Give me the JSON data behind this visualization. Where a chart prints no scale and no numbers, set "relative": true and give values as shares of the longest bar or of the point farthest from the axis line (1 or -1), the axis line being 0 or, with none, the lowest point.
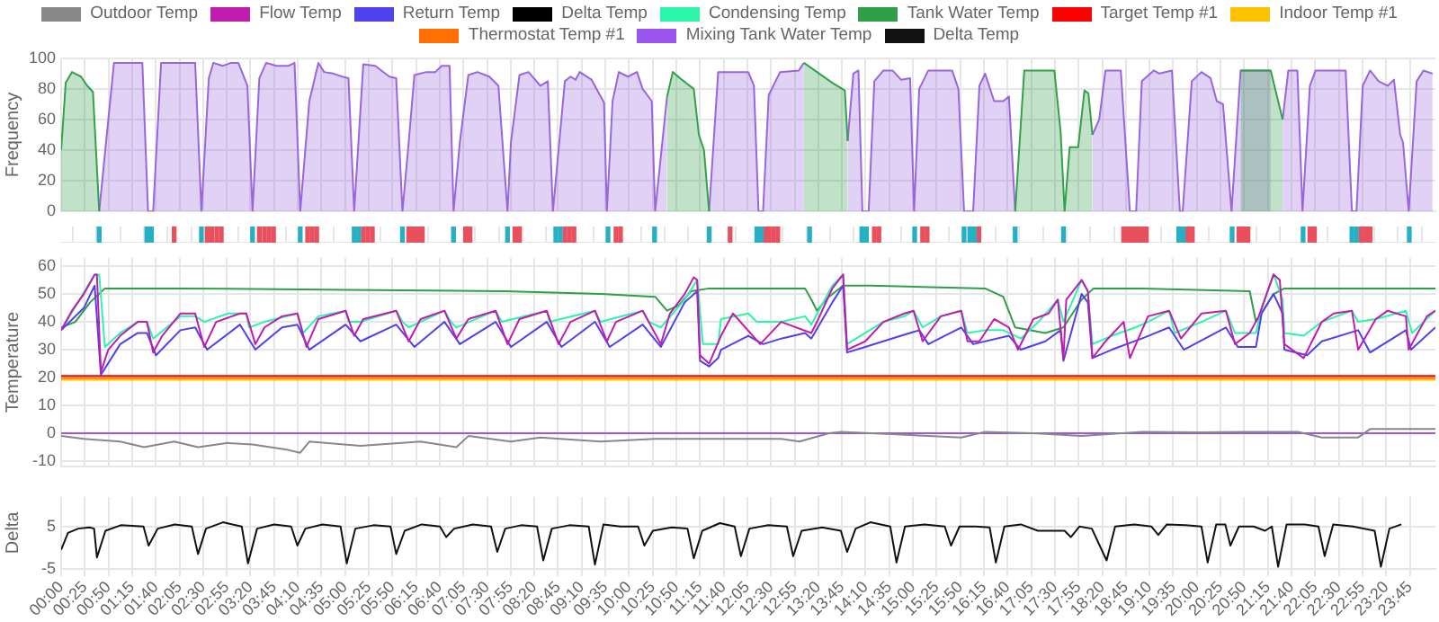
{
  "chart_data": [
    {
      "type": "area",
      "ylabel": "Frequency",
      "xlim": [
        0,
        24.2
      ],
      "ylim": [
        0,
        100
      ],
      "yticks": [
        0,
        20,
        40,
        60,
        80,
        100
      ],
      "tick_labels": "y",
      "grid": true,
      "legend": false,
      "marker": "none",
      "series": [
        {
          "color": "#33a04a",
          "x": [
            0,
            0.08,
            0.19,
            0.35,
            0.46,
            0.56,
            0.67,
            5,
            10.67,
            10.77,
            10.93,
            11.14,
            11.23,
            11.32,
            11.41,
            12,
            13.08,
            13.31,
            13.58,
            13.8,
            13.85,
            15,
            16.8,
            16.96,
            17.49,
            17.6,
            17.67,
            17.76,
            17.91,
            18.02,
            18.09,
            18.16,
            19,
            20.77,
            21.3,
            21.51
          ],
          "values": [
            40,
            84,
            91,
            88,
            82,
            78,
            0,
            null,
            75,
            91,
            86,
            80,
            50,
            40,
            0,
            null,
            97,
            91,
            84,
            79,
            46,
            null,
            0,
            92,
            92,
            52,
            0,
            42,
            42,
            79,
            77,
            50,
            null,
            92,
            92,
            60
          ]
        },
        {
          "color": "#9966dd",
          "x": [
            0.67,
            0.93,
            1.43,
            1.53,
            1.62,
            1.76,
            2.36,
            2.47,
            2.6,
            2.68,
            2.84,
            2.99,
            3.12,
            3.28,
            3.37,
            3.49,
            3.61,
            3.79,
            4.0,
            4.11,
            4.21,
            4.37,
            4.53,
            4.63,
            4.79,
            4.95,
            5.06,
            5.16,
            5.32,
            5.53,
            5.78,
            5.9,
            6.01,
            6.12,
            6.22,
            6.43,
            6.59,
            6.7,
            6.84,
            6.91,
            7.02,
            7.17,
            7.33,
            7.54,
            7.7,
            7.86,
            7.92,
            8.07,
            8.23,
            8.44,
            8.57,
            8.66,
            8.87,
            8.97,
            9.06,
            9.13,
            9.34,
            9.56,
            9.61,
            9.71,
            9.82,
            9.98,
            10.14,
            10.24,
            10.4,
            10.46,
            10.67,
            11.0,
            11.41,
            11.57,
            11.62,
            12.1,
            12.2,
            12.28,
            12.36,
            12.46,
            12.66,
            12.99,
            13.08,
            13.5,
            13.85,
            13.95,
            14.04,
            14.11,
            14.22,
            14.32,
            14.48,
            14.64,
            14.79,
            14.95,
            15.02,
            15.11,
            15.27,
            15.69,
            15.8,
            15.9,
            16.06,
            16.17,
            16.27,
            16.43,
            16.59,
            16.69,
            16.8,
            17.3,
            18.16,
            18.28,
            18.39,
            18.66,
            18.82,
            18.93,
            19.03,
            19.24,
            19.34,
            19.56,
            19.7,
            19.75,
            19.91,
            20.08,
            20.24,
            20.35,
            20.46,
            20.61,
            20.77,
            21.3,
            21.4,
            21.51,
            21.61,
            21.77,
            21.86,
            21.99,
            22.09,
            22.62,
            22.73,
            22.81,
            22.92,
            23.05,
            23.2,
            23.36,
            23.47,
            23.58,
            23.63,
            23.73,
            23.87,
            23.99,
            24.15
          ],
          "values": [
            0,
            97,
            97,
            0,
            0,
            97,
            97,
            0,
            87,
            97,
            95,
            97,
            97,
            82,
            0,
            87,
            97,
            95,
            95,
            97,
            0,
            72,
            97,
            91,
            90,
            88,
            87,
            0,
            96,
            95,
            88,
            87,
            0,
            45,
            89,
            91,
            91,
            95,
            95,
            0,
            45,
            89,
            91,
            88,
            82,
            0,
            45,
            89,
            91,
            82,
            85,
            0,
            85,
            88,
            86,
            91,
            86,
            71,
            0,
            72,
            91,
            88,
            91,
            80,
            72,
            0,
            75,
            null,
            0,
            91,
            91,
            91,
            82,
            0,
            0,
            76,
            91,
            92,
            97,
            null,
            46,
            90,
            92,
            0,
            0,
            85,
            92,
            92,
            86,
            87,
            0,
            80,
            92,
            92,
            80,
            0,
            0,
            82,
            90,
            72,
            72,
            75,
            0,
            null,
            50,
            60,
            92,
            92,
            0,
            0,
            85,
            92,
            90,
            92,
            0,
            0,
            85,
            91,
            87,
            72,
            70,
            0,
            92,
            92,
            null,
            60,
            92,
            92,
            0,
            82,
            92,
            92,
            0,
            0,
            82,
            92,
            85,
            82,
            86,
            50,
            45,
            0,
            85,
            92,
            90
          ]
        }
      ]
    },
    {
      "type": "bar",
      "relative": true,
      "xlim": [
        0,
        24.2
      ],
      "tick_labels": false,
      "grid": "x",
      "legend": false,
      "series": [
        {
          "color": "#26b0c4",
          "x": [
            0.67,
            1.51,
            1.59,
            2.47,
            3.37,
            4.21,
            5.16,
            5.24,
            6.01,
            6.91,
            7.86,
            8.71,
            8.79,
            9.63,
            10.45,
            11.41,
            12.25,
            12.33,
            13.18,
            14.1,
            14.18,
            15.03,
            15.9,
            16.0,
            16.08,
            16.8,
            17.65,
            19.68,
            19.76,
            20.62,
            21.87,
            22.73,
            22.81,
            23.74
          ],
          "values": [
            1,
            1,
            1,
            1,
            1,
            1,
            1,
            1,
            1,
            1,
            1,
            1,
            1,
            1,
            1,
            1,
            1,
            1,
            1,
            1,
            1,
            1,
            1,
            1,
            1,
            1,
            1,
            1,
            1,
            1,
            1,
            1,
            1,
            1
          ]
        },
        {
          "color": "#e8505e",
          "x": [
            1.99,
            2.57,
            2.65,
            2.74,
            2.82,
            3.49,
            3.58,
            3.66,
            3.74,
            4.34,
            4.42,
            4.5,
            5.32,
            5.4,
            5.48,
            6.12,
            6.2,
            6.28,
            6.36,
            7.12,
            7.2,
            7.99,
            8.07,
            8.87,
            8.95,
            9.03,
            9.77,
            9.85,
            11.78,
            12.41,
            12.46,
            12.54,
            12.62,
            14.32,
            14.4,
            15.17,
            15.25,
            16.16,
            18.71,
            18.79,
            18.87,
            18.95,
            19.03,
            19.11,
            19.84,
            19.92,
            20.74,
            20.82,
            20.9,
            21.99,
            22.07,
            22.89,
            22.97,
            23.05
          ],
          "values": [
            1,
            1,
            1,
            1,
            1,
            1,
            1,
            1,
            1,
            1,
            1,
            1,
            1,
            1,
            1,
            1,
            1,
            1,
            1,
            1,
            1,
            1,
            1,
            1,
            1,
            1,
            1,
            1,
            1,
            1,
            1,
            1,
            1,
            1,
            1,
            1,
            1,
            1,
            1,
            1,
            1,
            1,
            1,
            1,
            1,
            1,
            1,
            1,
            1,
            1,
            1,
            1,
            1,
            1
          ]
        }
      ]
    },
    {
      "type": "line",
      "ylabel": "Temperature",
      "xlim": [
        0,
        24.2
      ],
      "ylim": [
        -12,
        63
      ],
      "yticks": [
        -10,
        0,
        10,
        20,
        30,
        40,
        50,
        60
      ],
      "tick_labels": "y",
      "grid": true,
      "legend": "top",
      "marker": "none",
      "series": [
        {
          "name": "Outdoor Temp",
          "color": "#888888",
          "x": [
            0,
            0.4,
            1.04,
            1.46,
            1.99,
            2.41,
            2.94,
            3.37,
            4.0,
            4.21,
            4.37,
            5.27,
            6.33,
            6.96,
            7.17,
            7.92,
            8.44,
            9.5,
            10.46,
            11.57,
            12.68,
            13.0,
            13.52,
            13.74,
            14.79,
            15.85,
            16.27,
            17.12,
            17.97,
            19.03,
            20.08,
            20.83,
            21.78,
            22.2,
            22.84,
            23.05,
            24.2
          ],
          "values": [
            -1,
            -2,
            -3,
            -5,
            -3,
            -5,
            -3.5,
            -4,
            -6,
            -7,
            -3,
            -4.5,
            -3,
            -5,
            -1,
            -3,
            -1.5,
            -3,
            -2,
            -2,
            -2,
            -3,
            0,
            0.5,
            -0.5,
            -1.5,
            0.5,
            0,
            -1,
            0.5,
            0.3,
            0.5,
            0.5,
            -1.5,
            -1.5,
            1.5,
            1.5
          ]
        },
        {
          "name": "Flow Temp",
          "color": "#c21bb0",
          "x": [
            0,
            0.19,
            0.4,
            0.59,
            0.63,
            0.7,
            0.83,
            1.04,
            1.35,
            1.51,
            1.62,
            1.78,
            2.1,
            2.36,
            2.52,
            2.73,
            3.15,
            3.26,
            3.42,
            3.58,
            3.89,
            4.16,
            4.32,
            4.53,
            5.01,
            5.16,
            5.32,
            5.9,
            6.12,
            6.33,
            6.75,
            6.96,
            7.17,
            7.65,
            7.86,
            8.07,
            8.55,
            8.76,
            8.97,
            9.4,
            9.61,
            9.77,
            10.24,
            10.56,
            10.72,
            10.98,
            11.14,
            11.2,
            11.25,
            11.41,
            11.62,
            11.83,
            12.31,
            12.68,
            13.21,
            13.31,
            13.58,
            13.77,
            13.84,
            14.16,
            14.48,
            14.85,
            15.01,
            15.17,
            15.49,
            15.85,
            15.96,
            16.17,
            16.43,
            16.69,
            16.85,
            17.12,
            17.39,
            17.55,
            17.65,
            17.7,
            17.97,
            18.08,
            18.16,
            18.39,
            18.71,
            18.82,
            19.14,
            19.51,
            19.72,
            20.08,
            20.51,
            20.67,
            20.93,
            21.09,
            21.35,
            21.46,
            21.54,
            21.88,
            22.2,
            22.41,
            22.73,
            22.84,
            23.15,
            23.36,
            23.68,
            23.73,
            24.05,
            24.2
          ],
          "values": [
            37,
            44,
            50,
            57,
            57,
            22,
            30,
            35,
            40,
            40,
            29,
            35,
            43,
            43,
            31,
            40,
            43,
            43,
            32,
            38,
            42,
            43,
            31,
            41,
            44,
            35,
            41,
            44,
            33,
            41,
            44,
            34,
            41,
            44,
            32,
            41,
            44,
            32,
            40,
            44,
            33,
            40,
            44,
            32,
            43,
            50,
            56,
            55,
            28,
            25,
            35,
            43,
            32,
            40,
            36,
            40,
            52,
            57,
            30,
            33,
            40,
            43,
            44,
            33,
            42,
            44,
            33,
            33,
            41,
            38,
            30,
            41,
            43,
            48,
            27,
            48,
            55,
            51,
            27,
            33,
            40,
            27,
            42,
            44,
            34,
            43,
            44,
            32,
            36,
            42,
            57,
            55,
            32,
            27,
            40,
            43,
            44,
            30,
            41,
            44,
            42,
            30,
            42,
            44
          ]
        },
        {
          "name": "Return Temp",
          "color": "#5040ee",
          "x": [
            0,
            0.4,
            0.59,
            0.7,
            1.04,
            1.35,
            1.51,
            1.67,
            2.1,
            2.36,
            2.57,
            3.15,
            3.42,
            3.89,
            4.16,
            4.37,
            5.01,
            5.27,
            5.9,
            6.22,
            6.75,
            7.02,
            7.65,
            7.92,
            8.55,
            8.81,
            9.4,
            9.66,
            10.24,
            10.56,
            10.98,
            11.2,
            11.25,
            11.41,
            11.57,
            11.62,
            12.1,
            12.36,
            12.68,
            13.1,
            13.21,
            13.58,
            13.77,
            13.84,
            14.16,
            14.79,
            15.11,
            15.27,
            15.85,
            16.06,
            16.69,
            16.9,
            17.33,
            17.6,
            17.65,
            17.97,
            18.08,
            18.16,
            18.5,
            19.03,
            19.51,
            19.77,
            20.51,
            20.72,
            21.04,
            21.14,
            21.35,
            21.51,
            21.54,
            21.94,
            22.2,
            22.84,
            23.05,
            23.68,
            23.77,
            24.2
          ],
          "values": [
            37,
            45,
            53,
            21,
            32,
            36,
            36,
            28,
            37,
            38,
            30,
            39,
            30,
            38,
            39,
            30,
            39,
            33,
            39,
            31,
            40,
            32,
            40,
            31,
            40,
            31,
            40,
            31,
            39,
            31,
            47,
            51,
            26,
            24,
            27,
            30,
            35,
            32,
            34,
            36,
            34,
            47,
            53,
            29,
            31,
            35,
            37,
            32,
            38,
            32,
            35,
            30,
            33,
            37,
            26,
            50,
            47,
            27,
            30,
            34,
            38,
            30,
            38,
            31,
            31,
            43,
            50,
            43,
            30,
            28,
            33,
            37,
            29,
            37,
            30,
            38
          ]
        },
        {
          "name": "Delta Temp",
          "color": "#000000"
        },
        {
          "name": "Condensing Temp",
          "color": "#2af5a8",
          "x": [
            0,
            0.59,
            0.67,
            0.77,
            1.04,
            1.35,
            1.51,
            1.62,
            2.1,
            2.36,
            2.52,
            2.94,
            3.26,
            3.31,
            3.58,
            4.16,
            4.26,
            4.53,
            5.01,
            5.06,
            5.27,
            5.9,
            6.01,
            6.12,
            6.75,
            6.86,
            6.96,
            7.65,
            7.76,
            8.55,
            8.6,
            9.4,
            9.5,
            10.24,
            10.35,
            10.56,
            10.98,
            11.2,
            11.3,
            11.57,
            11.62,
            12.1,
            12.25,
            12.68,
            13.1,
            13.21,
            13.58,
            13.77,
            13.84,
            14.16,
            14.48,
            14.85,
            15.01,
            15.17,
            15.49,
            15.85,
            15.96,
            16.27,
            16.59,
            16.9,
            17.21,
            17.55,
            17.65,
            17.97,
            18.08,
            18.16,
            18.5,
            18.92,
            19.14,
            19.51,
            19.61,
            20.08,
            20.51,
            20.67,
            21.04,
            21.14,
            21.35,
            21.51,
            21.54,
            21.88,
            22.2,
            22.73,
            22.84,
            23.15,
            23.68,
            23.79,
            24.2
          ],
          "values": [
            37,
            57,
            57,
            31,
            36,
            40,
            40,
            34,
            42,
            42,
            40,
            43,
            43,
            38,
            40,
            43,
            36,
            42,
            44,
            40,
            40,
            44,
            40,
            38,
            44,
            40,
            38,
            44,
            40,
            44,
            40,
            44,
            40,
            44,
            40,
            38,
            48,
            55,
            32,
            32,
            41,
            43,
            40,
            40,
            42,
            39,
            53,
            57,
            32,
            36,
            40,
            42,
            44,
            38,
            42,
            44,
            36,
            37,
            37,
            34,
            40,
            48,
            40,
            55,
            51,
            32,
            35,
            38,
            40,
            44,
            36,
            40,
            44,
            36,
            36,
            45,
            57,
            48,
            36,
            35,
            40,
            44,
            40,
            41,
            44,
            36,
            44
          ]
        },
        {
          "name": "Tank Water Temp",
          "color": "#2e9e48",
          "x": [
            0,
            0.25,
            0.51,
            0.77,
            2.1,
            5.06,
            7.81,
            9.5,
            10.46,
            10.67,
            10.88,
            11.09,
            11.41,
            11.62,
            13.1,
            13.21,
            13.31,
            13.52,
            13.77,
            14.26,
            16.27,
            16.59,
            16.8,
            17.33,
            17.65,
            17.97,
            18.18,
            19.03,
            20.93,
            21.04,
            21.35,
            21.54,
            24.2
          ],
          "values": [
            38,
            40,
            47,
            52,
            52,
            51.5,
            51,
            50,
            49,
            44,
            46,
            51,
            52,
            52,
            52,
            48,
            44,
            49,
            53,
            53,
            52,
            49,
            38,
            36,
            38,
            48,
            52,
            52,
            51,
            40,
            50,
            52,
            52
          ]
        },
        {
          "name": "Target Temp #1",
          "color": "#ff0000",
          "x": [
            0,
            24.2
          ],
          "values": [
            20.6,
            20.6
          ]
        },
        {
          "name": "Indoor Temp #1",
          "color": "#ffc000",
          "x": [
            0,
            24.2
          ],
          "values": [
            19.2,
            19.2
          ]
        },
        {
          "name": "Thermostat Temp #1",
          "color": "#ff7000",
          "x": [
            0,
            24.2
          ],
          "values": [
            19.8,
            19.8
          ]
        },
        {
          "name": "Mixing Tank Water Temp",
          "color": "#9955ee",
          "x": [
            0,
            24.2
          ],
          "values": [
            0,
            0
          ]
        }
      ]
    },
    {
      "type": "line",
      "ylabel": "Delta",
      "xlim": [
        0,
        24.2
      ],
      "ylim": [
        -5,
        12
      ],
      "yticks": [
        -5,
        5
      ],
      "grid": true,
      "legend": "top",
      "marker": "none",
      "xticks": [
        {
          "value": 0,
          "label": "00:00"
        },
        {
          "value": 0.4167,
          "label": "00:25"
        },
        {
          "value": 0.8333,
          "label": "00:50"
        },
        {
          "value": 1.25,
          "label": "01:15"
        },
        {
          "value": 1.6667,
          "label": "01:40"
        },
        {
          "value": 2.0833,
          "label": "02:05"
        },
        {
          "value": 2.5,
          "label": "02:30"
        },
        {
          "value": 2.9167,
          "label": "02:55"
        },
        {
          "value": 3.3333,
          "label": "03:20"
        },
        {
          "value": 3.75,
          "label": "03:45"
        },
        {
          "value": 4.1667,
          "label": "04:10"
        },
        {
          "value": 4.5833,
          "label": "04:35"
        },
        {
          "value": 5,
          "label": "05:00"
        },
        {
          "value": 5.4167,
          "label": "05:25"
        },
        {
          "value": 5.8333,
          "label": "05:50"
        },
        {
          "value": 6.25,
          "label": "06:15"
        },
        {
          "value": 6.6667,
          "label": "06:40"
        },
        {
          "value": 7.0833,
          "label": "07:05"
        },
        {
          "value": 7.5,
          "label": "07:30"
        },
        {
          "value": 7.9167,
          "label": "07:55"
        },
        {
          "value": 8.3333,
          "label": "08:20"
        },
        {
          "value": 8.75,
          "label": "08:45"
        },
        {
          "value": 9.1667,
          "label": "09:10"
        },
        {
          "value": 9.5833,
          "label": "09:35"
        },
        {
          "value": 10,
          "label": "10:00"
        },
        {
          "value": 10.4167,
          "label": "10:25"
        },
        {
          "value": 10.8333,
          "label": "10:50"
        },
        {
          "value": 11.25,
          "label": "11:15"
        },
        {
          "value": 11.6667,
          "label": "11:40"
        },
        {
          "value": 12.0833,
          "label": "12:05"
        },
        {
          "value": 12.5,
          "label": "12:30"
        },
        {
          "value": 12.9167,
          "label": "12:55"
        },
        {
          "value": 13.3333,
          "label": "13:20"
        },
        {
          "value": 13.75,
          "label": "13:45"
        },
        {
          "value": 14.1667,
          "label": "14:10"
        },
        {
          "value": 14.5833,
          "label": "14:35"
        },
        {
          "value": 15,
          "label": "15:00"
        },
        {
          "value": 15.4167,
          "label": "15:25"
        },
        {
          "value": 15.8333,
          "label": "15:50"
        },
        {
          "value": 16.25,
          "label": "16:15"
        },
        {
          "value": 16.6667,
          "label": "16:40"
        },
        {
          "value": 17.0833,
          "label": "17:05"
        },
        {
          "value": 17.5,
          "label": "17:30"
        },
        {
          "value": 17.9167,
          "label": "17:55"
        },
        {
          "value": 18.3333,
          "label": "18:20"
        },
        {
          "value": 18.75,
          "label": "18:45"
        },
        {
          "value": 19.1667,
          "label": "19:10"
        },
        {
          "value": 19.5833,
          "label": "19:35"
        },
        {
          "value": 20,
          "label": "20:00"
        },
        {
          "value": 20.4167,
          "label": "20:25"
        },
        {
          "value": 20.8333,
          "label": "20:50"
        },
        {
          "value": 21.25,
          "label": "21:15"
        },
        {
          "value": 21.6667,
          "label": "21:40"
        },
        {
          "value": 22.0833,
          "label": "22:05"
        },
        {
          "value": 22.5,
          "label": "22:30"
        },
        {
          "value": 22.9167,
          "label": "22:55"
        },
        {
          "value": 23.3333,
          "label": "23:20"
        },
        {
          "value": 23.75,
          "label": "23:45"
        }
      ],
      "series": [
        {
          "name": "Delta Temp",
          "color": "#111111",
          "x": [
            0,
            0.12,
            0.3,
            0.5,
            0.58,
            0.63,
            0.78,
            1.05,
            1.45,
            1.54,
            1.7,
            2.0,
            2.3,
            2.41,
            2.55,
            2.85,
            3.18,
            3.29,
            3.45,
            3.75,
            4.05,
            4.16,
            4.3,
            4.6,
            4.92,
            5.03,
            5.18,
            5.5,
            5.8,
            5.9,
            6.05,
            6.35,
            6.67,
            6.78,
            6.92,
            7.25,
            7.57,
            7.68,
            7.82,
            8.1,
            8.38,
            8.49,
            8.64,
            8.95,
            9.29,
            9.4,
            9.55,
            9.85,
            10.16,
            10.27,
            10.42,
            10.75,
            11.03,
            11.14,
            11.29,
            11.6,
            11.86,
            11.97,
            12.12,
            12.45,
            12.78,
            12.89,
            13.04,
            13.4,
            13.73,
            13.84,
            13.99,
            14.25,
            14.6,
            14.71,
            14.86,
            15.2,
            15.56,
            15.67,
            15.82,
            16.1,
            16.35,
            16.46,
            16.61,
            16.9,
            17.2,
            17.67,
            17.78,
            17.93,
            18.15,
            18.41,
            18.56,
            18.9,
            19.2,
            19.32,
            19.47,
            19.8,
            20.08,
            20.19,
            20.34,
            20.5,
            20.59,
            20.74,
            21.0,
            21.2,
            21.32,
            21.43,
            21.58,
            21.9,
            22.14,
            22.25,
            22.4,
            22.75,
            23.13,
            23.24,
            23.39,
            23.6
          ],
          "values": [
            -0.5,
            3.5,
            4.5,
            4.8,
            4.5,
            -2.3,
            4,
            5.3,
            5,
            0.5,
            4.5,
            5.5,
            5,
            -1.5,
            4.5,
            6,
            5,
            -3.7,
            4.5,
            5.5,
            5,
            0.5,
            4.5,
            5.5,
            5,
            -3.7,
            4.5,
            5.3,
            5,
            -1.5,
            4,
            5.5,
            5,
            2.5,
            4.5,
            5.5,
            5,
            -1,
            4.5,
            5.3,
            5,
            -3,
            4.5,
            5.3,
            5,
            -4,
            5.5,
            5,
            5,
            0.5,
            4,
            4.8,
            4.5,
            -2.5,
            4,
            5.8,
            5,
            -2,
            4.5,
            5.3,
            5,
            -2,
            4,
            4.8,
            4,
            -1,
            4.5,
            6,
            5,
            -3.5,
            5,
            5.5,
            5,
            0.5,
            5,
            5,
            4.8,
            -3.5,
            5,
            5.5,
            4,
            4,
            2.5,
            5,
            4.5,
            -3,
            5,
            5.5,
            5,
            3,
            5.5,
            5.3,
            5,
            -3.5,
            5.5,
            5.5,
            0.5,
            5,
            5,
            4,
            5,
            -4.5,
            5.5,
            5.5,
            5,
            -2,
            5.5,
            5,
            4,
            -4.5,
            4.5,
            5.5
          ]
        }
      ]
    }
  ]
}
